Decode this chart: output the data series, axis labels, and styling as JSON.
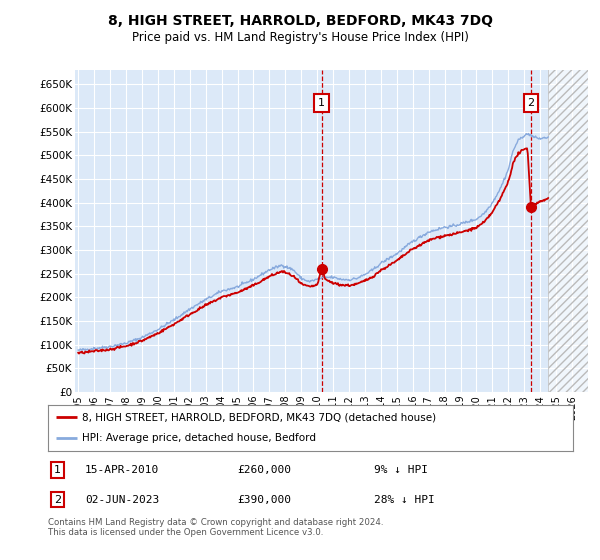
{
  "title": "8, HIGH STREET, HARROLD, BEDFORD, MK43 7DQ",
  "subtitle": "Price paid vs. HM Land Registry's House Price Index (HPI)",
  "xlabel": "",
  "ylabel": "",
  "ylim": [
    0,
    680000
  ],
  "yticks": [
    0,
    50000,
    100000,
    150000,
    200000,
    250000,
    300000,
    350000,
    400000,
    450000,
    500000,
    550000,
    600000,
    650000
  ],
  "ytick_labels": [
    "£0",
    "£50K",
    "£100K",
    "£150K",
    "£200K",
    "£250K",
    "£300K",
    "£350K",
    "£400K",
    "£450K",
    "£500K",
    "£550K",
    "£600K",
    "£650K"
  ],
  "background_color": "#dce9f8",
  "plot_bg_color": "#dce9f8",
  "grid_color": "#ffffff",
  "red_color": "#cc0000",
  "blue_color": "#88aadd",
  "marker1_year": 2010.29,
  "marker1_price": 260000,
  "marker2_year": 2023.42,
  "marker2_price": 390000,
  "legend_label_red": "8, HIGH STREET, HARROLD, BEDFORD, MK43 7DQ (detached house)",
  "legend_label_blue": "HPI: Average price, detached house, Bedford",
  "annotation1_date": "15-APR-2010",
  "annotation1_price": "£260,000",
  "annotation1_pct": "9% ↓ HPI",
  "annotation2_date": "02-JUN-2023",
  "annotation2_price": "£390,000",
  "annotation2_pct": "28% ↓ HPI",
  "footnote": "Contains HM Land Registry data © Crown copyright and database right 2024.\nThis data is licensed under the Open Government Licence v3.0.",
  "hatch_start_year": 2024.5,
  "hatch_end_year": 2027.0,
  "xlim_left": 1994.8,
  "xlim_right": 2027.0
}
